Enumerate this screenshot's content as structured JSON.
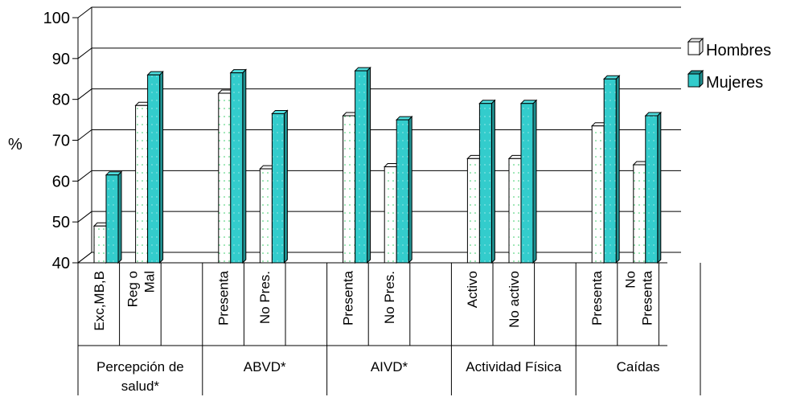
{
  "chart_data": {
    "type": "bar",
    "ylabel": "%",
    "ylim": [
      40,
      100
    ],
    "yticks": [
      40,
      50,
      60,
      70,
      80,
      90,
      100
    ],
    "grid": true,
    "legend_position": "right",
    "groups": [
      {
        "label": "Percepción de salud*",
        "categories": [
          "Exc,MB,B",
          "Reg o Mal"
        ]
      },
      {
        "label": "ABVD*",
        "categories": [
          "Presenta",
          "No Pres."
        ]
      },
      {
        "label": "AIVD*",
        "categories": [
          "Presenta",
          "No Pres."
        ]
      },
      {
        "label": "Actividad Física",
        "categories": [
          "Activo",
          "No activo"
        ]
      },
      {
        "label": "Caídas",
        "categories": [
          "Presenta",
          "No Presenta"
        ]
      }
    ],
    "categories": [
      "Exc,MB,B",
      "Reg o Mal",
      "Presenta",
      "No Pres.",
      "Presenta",
      "No Pres.",
      "Activo",
      "No activo",
      "Presenta",
      "No Presenta"
    ],
    "series": [
      {
        "name": "Hombres",
        "color": "#ffffff",
        "values": [
          49,
          78.5,
          81.5,
          63,
          76,
          63.5,
          65.5,
          65.5,
          73.5,
          64
        ]
      },
      {
        "name": "Mujeres",
        "color": "#33cccc",
        "values": [
          61.5,
          86,
          86.5,
          76.5,
          87,
          75,
          79,
          79,
          85,
          76
        ]
      }
    ]
  }
}
